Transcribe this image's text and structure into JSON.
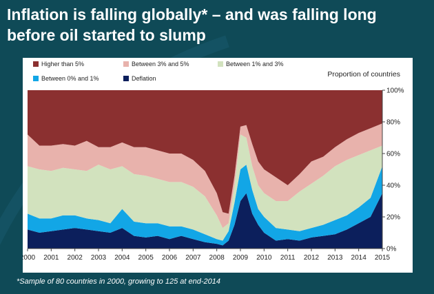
{
  "slide": {
    "title_line1": "Inflation is falling globally* – and was falling long",
    "title_line2": "before oil started to slump",
    "footnote": "*Sample of 80 countries in 2000, growing to 125 at end-2014"
  },
  "chart_data": {
    "type": "area",
    "stacked": true,
    "ylabel": "Proportion of countries",
    "ylim": [
      0,
      100
    ],
    "yticks": [
      "0%",
      "20%",
      "40%",
      "60%",
      "80%",
      "100%"
    ],
    "x_tick_labels": [
      "2000",
      "2001",
      "2002",
      "2003",
      "2004",
      "2005",
      "2006",
      "2007",
      "2008",
      "2009",
      "2010",
      "2011",
      "2012",
      "2013",
      "2014",
      "2015"
    ],
    "x": [
      2000.0,
      2000.5,
      2001.0,
      2001.5,
      2002.0,
      2002.5,
      2003.0,
      2003.5,
      2004.0,
      2004.5,
      2005.0,
      2005.5,
      2006.0,
      2006.5,
      2007.0,
      2007.5,
      2008.0,
      2008.25,
      2008.5,
      2008.75,
      2009.0,
      2009.25,
      2009.5,
      2009.75,
      2010.0,
      2010.5,
      2011.0,
      2011.5,
      2012.0,
      2012.5,
      2013.0,
      2013.5,
      2014.0,
      2014.5,
      2015.0
    ],
    "series": [
      {
        "name": "Deflation",
        "color": "#0c1f5c",
        "values": [
          12,
          10,
          11,
          12,
          13,
          12,
          11,
          10,
          13,
          8,
          7,
          8,
          6,
          8,
          6,
          4,
          3,
          2,
          5,
          15,
          30,
          35,
          22,
          15,
          10,
          5,
          6,
          5,
          7,
          8,
          9,
          12,
          16,
          20,
          35
        ]
      },
      {
        "name": "Between 0% and 1%",
        "color": "#12a6e6",
        "values": [
          10,
          9,
          8,
          9,
          8,
          7,
          7,
          6,
          12,
          9,
          9,
          8,
          8,
          6,
          6,
          5,
          3,
          3,
          6,
          14,
          20,
          18,
          15,
          10,
          10,
          8,
          6,
          6,
          6,
          7,
          9,
          9,
          10,
          12,
          17
        ]
      },
      {
        "name": "Between 1% and 3%",
        "color": "#d2e2be",
        "values": [
          30,
          31,
          30,
          30,
          29,
          30,
          35,
          34,
          27,
          30,
          30,
          28,
          28,
          28,
          27,
          24,
          15,
          8,
          5,
          11,
          22,
          17,
          15,
          15,
          15,
          17,
          18,
          25,
          28,
          31,
          34,
          35,
          33,
          30,
          13
        ]
      },
      {
        "name": "Between 3% and 5%",
        "color": "#e8b2ac",
        "values": [
          20,
          15,
          16,
          15,
          15,
          19,
          11,
          14,
          15,
          17,
          18,
          18,
          18,
          18,
          17,
          16,
          14,
          10,
          6,
          6,
          5,
          8,
          14,
          15,
          15,
          15,
          10,
          11,
          14,
          12,
          12,
          13,
          14,
          14,
          14
        ]
      },
      {
        "name": "Higher than 5%",
        "color": "#8b3030",
        "values": [
          28,
          35,
          35,
          34,
          35,
          32,
          36,
          36,
          33,
          36,
          36,
          38,
          40,
          40,
          44,
          51,
          65,
          77,
          78,
          54,
          23,
          22,
          34,
          45,
          50,
          55,
          60,
          53,
          45,
          42,
          36,
          31,
          27,
          24,
          21
        ]
      }
    ],
    "legend_order": [
      "Higher than 5%",
      "Between 3% and 5%",
      "Between 1% and 3%",
      "Between 0% and 1%",
      "Deflation"
    ]
  }
}
